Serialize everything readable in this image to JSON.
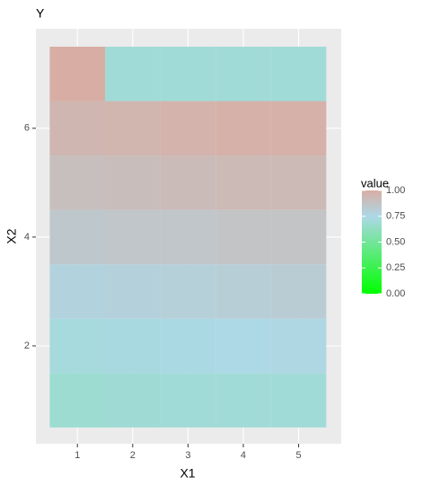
{
  "chart_data": {
    "type": "heatmap",
    "title": "Y",
    "x_label": "X1",
    "y_label": "X2",
    "x": [
      1,
      2,
      3,
      4,
      5
    ],
    "y": [
      1,
      2,
      3,
      4,
      5,
      6,
      7
    ],
    "z": [
      [
        0.68,
        0.69,
        0.7,
        0.7,
        0.7
      ],
      [
        0.72,
        0.73,
        0.74,
        0.75,
        0.76
      ],
      [
        0.78,
        0.79,
        0.8,
        0.81,
        0.82
      ],
      [
        0.85,
        0.86,
        0.86,
        0.87,
        0.87
      ],
      [
        0.9,
        0.91,
        0.92,
        0.93,
        0.93
      ],
      [
        0.95,
        0.96,
        0.97,
        0.98,
        0.98
      ],
      [
        1.0,
        0.7,
        0.7,
        0.7,
        0.7
      ]
    ],
    "xlim": [
      0.25,
      5.77
    ],
    "ylim": [
      0.2,
      7.83
    ],
    "xticks": [
      1,
      2,
      3,
      4,
      5
    ],
    "yticks": [
      2,
      4,
      6
    ],
    "grid": true,
    "legend_title": "value",
    "colorbar_lim": [
      0,
      1
    ],
    "colorbar_ticks": [
      {
        "value": 0,
        "label": "0.00"
      },
      {
        "value": 0.25,
        "label": "0.25"
      },
      {
        "value": 0.5,
        "label": "0.50"
      },
      {
        "value": 0.75,
        "label": "0.75"
      },
      {
        "value": 1,
        "label": "1.00"
      }
    ],
    "scale_stops": [
      0,
      0.75,
      1
    ],
    "scale_colors": [
      "#00ff00",
      "#add8e6",
      "#d8aea4"
    ]
  }
}
